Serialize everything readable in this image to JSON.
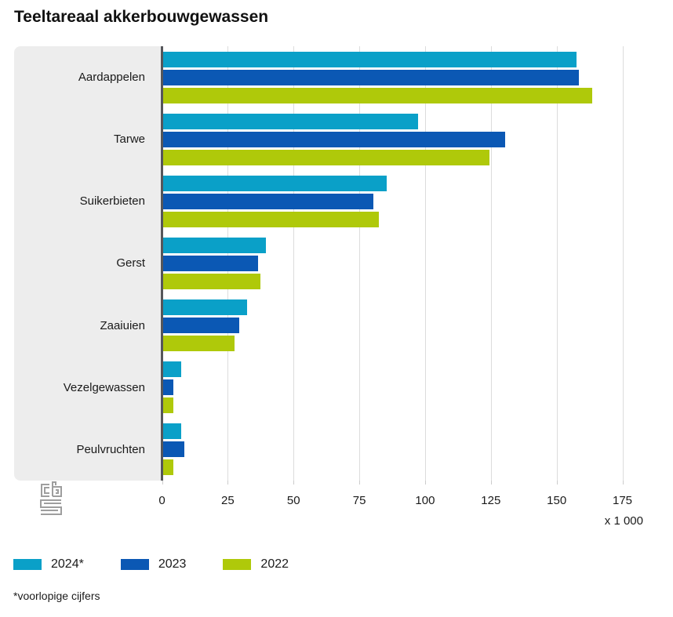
{
  "title": "Teeltareaal akkerbouwgewassen",
  "unit_label": "x 1 000",
  "footnote": "*voorlopige cijfers",
  "colors": {
    "series_2024": "#0aa0c8",
    "series_2023": "#0b58b4",
    "series_2022": "#afc90a",
    "axis_line": "#55565a",
    "gridline": "#dcdcdc",
    "panel_bg": "#ededed",
    "logo_gray": "#9e9e9e"
  },
  "chart_data": {
    "type": "bar",
    "orientation": "horizontal",
    "title": "Teeltareaal akkerbouwgewassen",
    "categories": [
      "Aardappelen",
      "Tarwe",
      "Suikerbieten",
      "Gerst",
      "Zaaiuien",
      "Vezelgewassen",
      "Peulvruchten"
    ],
    "series": [
      {
        "name": "2024*",
        "color": "#0aa0c8",
        "values": [
          157,
          97,
          85,
          39,
          32,
          7,
          7
        ]
      },
      {
        "name": "2023",
        "color": "#0b58b4",
        "values": [
          158,
          130,
          80,
          36,
          29,
          4,
          8
        ]
      },
      {
        "name": "2022",
        "color": "#afc90a",
        "values": [
          163,
          124,
          82,
          37,
          27,
          4,
          4
        ]
      }
    ],
    "x_ticks": [
      0,
      25,
      50,
      75,
      100,
      125,
      150,
      175
    ],
    "xlim": [
      0,
      175
    ],
    "xlabel": "x 1 000",
    "ylabel": "",
    "grid": true,
    "legend_position": "bottom",
    "footnote": "*voorlopige cijfers"
  },
  "legend": {
    "items": [
      {
        "label": "2024*",
        "color": "#0aa0c8"
      },
      {
        "label": "2023",
        "color": "#0b58b4"
      },
      {
        "label": "2022",
        "color": "#afc90a"
      }
    ]
  }
}
